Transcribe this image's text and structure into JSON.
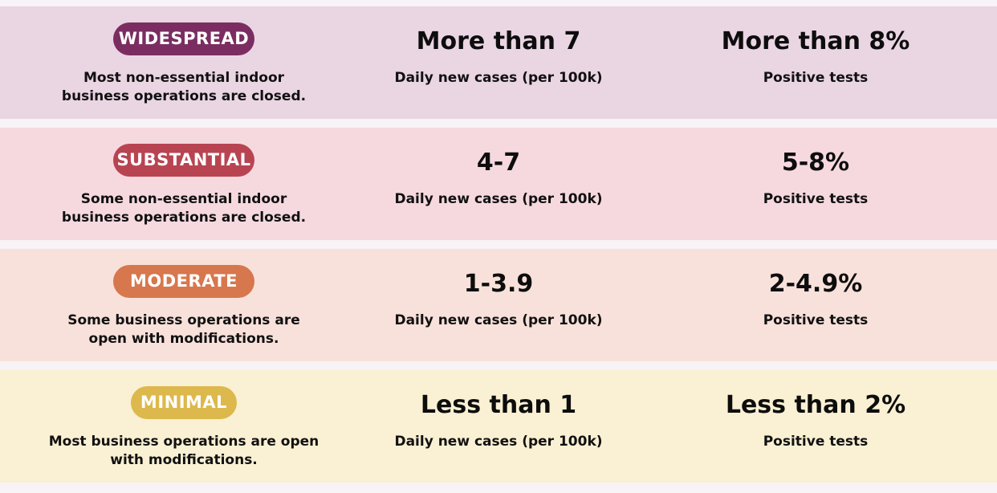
{
  "tiers": [
    {
      "badge": "WIDESPREAD",
      "badge_color": "#7b2d62",
      "row_color": "#ead5e3",
      "description": "Most non-essential indoor business operations are closed.",
      "cases_value": "More than 7",
      "cases_label": "Daily new cases (per 100k)",
      "tests_value": "More than 8%",
      "tests_label": "Positive tests"
    },
    {
      "badge": "SUBSTANTIAL",
      "badge_color": "#b84452",
      "row_color": "#f6d9df",
      "description": "Some non-essential indoor business operations are closed.",
      "cases_value": "4-7",
      "cases_label": "Daily new cases (per 100k)",
      "tests_value": "5-8%",
      "tests_label": "Positive tests"
    },
    {
      "badge": "MODERATE",
      "badge_color": "#d7774e",
      "row_color": "#f8e1da",
      "description": "Some business operations are open with modifications.",
      "cases_value": "1-3.9",
      "cases_label": "Daily new cases (per 100k)",
      "tests_value": "2-4.9%",
      "tests_label": "Positive tests"
    },
    {
      "badge": "MINIMAL",
      "badge_color": "#ddb84c",
      "row_color": "#faf0d3",
      "description": "Most business operations are open with modifications.",
      "cases_value": "Less than 1",
      "cases_label": "Daily new cases (per 100k)",
      "tests_value": "Less than 2%",
      "tests_label": "Positive tests"
    }
  ]
}
